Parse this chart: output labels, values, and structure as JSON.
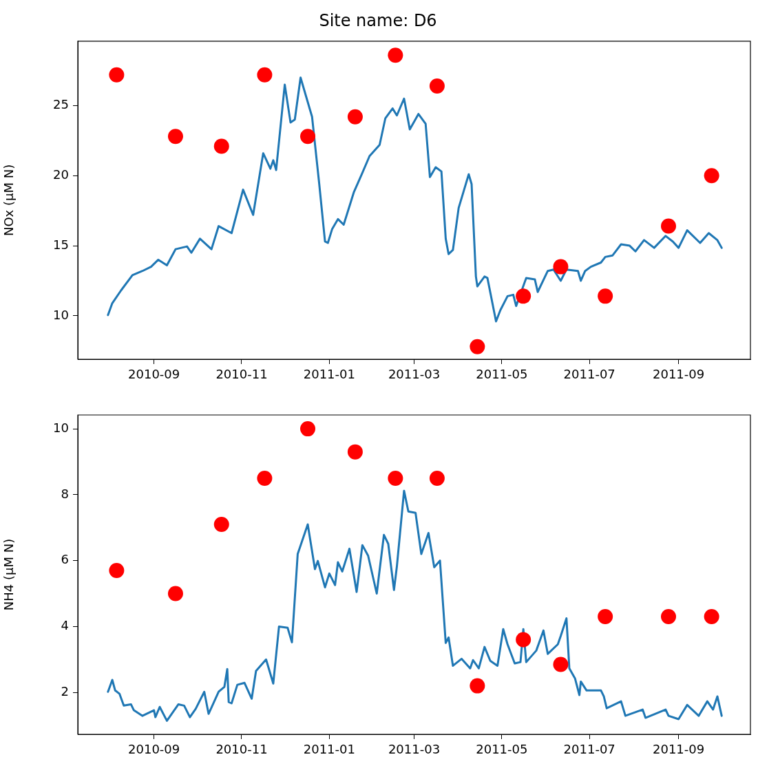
{
  "chart_data": [
    {
      "type": "line",
      "title": "Site name: D6",
      "ylabel": "NOx (μM N)",
      "xlim": [
        "2010-07-10",
        "2011-10-21"
      ],
      "ylim": [
        6.9,
        29.6
      ],
      "xticks": [
        "2010-09",
        "2010-11",
        "2011-01",
        "2011-03",
        "2011-05",
        "2011-07",
        "2011-09"
      ],
      "yticks": [
        10,
        15,
        20,
        25
      ],
      "series": [
        {
          "type": "line",
          "color": "#1f77b4",
          "x": [
            "2010-07-31",
            "2010-08-03",
            "2010-08-09",
            "2010-08-17",
            "2010-08-24",
            "2010-08-30",
            "2010-09-04",
            "2010-09-10",
            "2010-09-16",
            "2010-09-24",
            "2010-09-27",
            "2010-10-03",
            "2010-10-11",
            "2010-10-16",
            "2010-10-25",
            "2010-11-02",
            "2010-11-09",
            "2010-11-16",
            "2010-11-21",
            "2010-11-23",
            "2010-11-25",
            "2010-12-01",
            "2010-12-05",
            "2010-12-08",
            "2010-12-12",
            "2010-12-20",
            "2010-12-25",
            "2010-12-29",
            "2010-12-31",
            "2011-01-03",
            "2011-01-07",
            "2011-01-11",
            "2011-01-18",
            "2011-01-24",
            "2011-01-29",
            "2011-02-05",
            "2011-02-09",
            "2011-02-14",
            "2011-02-17",
            "2011-02-22",
            "2011-02-26",
            "2011-03-04",
            "2011-03-09",
            "2011-03-12",
            "2011-03-16",
            "2011-03-20",
            "2011-03-23",
            "2011-03-25",
            "2011-03-28",
            "2011-04-01",
            "2011-04-08",
            "2011-04-10",
            "2011-04-13",
            "2011-04-14",
            "2011-04-19",
            "2011-04-21",
            "2011-04-27",
            "2011-04-30",
            "2011-05-05",
            "2011-05-09",
            "2011-05-11",
            "2011-05-18",
            "2011-05-24",
            "2011-05-26",
            "2011-06-02",
            "2011-06-06",
            "2011-06-11",
            "2011-06-15",
            "2011-06-23",
            "2011-06-25",
            "2011-06-28",
            "2011-07-02",
            "2011-07-09",
            "2011-07-12",
            "2011-07-17",
            "2011-07-23",
            "2011-07-29",
            "2011-08-02",
            "2011-08-08",
            "2011-08-15",
            "2011-08-23",
            "2011-08-28",
            "2011-09-01",
            "2011-09-07",
            "2011-09-16",
            "2011-09-22",
            "2011-09-28",
            "2011-10-01"
          ],
          "values": [
            10.05,
            10.9,
            11.8,
            12.9,
            13.2,
            13.5,
            14.0,
            13.6,
            14.75,
            14.95,
            14.5,
            15.5,
            14.75,
            16.4,
            15.9,
            19.0,
            17.2,
            21.6,
            20.5,
            21.1,
            20.4,
            26.5,
            23.8,
            24.0,
            27.0,
            24.2,
            19.4,
            15.3,
            15.2,
            16.2,
            16.9,
            16.5,
            18.8,
            20.2,
            21.4,
            22.2,
            24.1,
            24.8,
            24.3,
            25.5,
            23.3,
            24.4,
            23.7,
            19.9,
            20.6,
            20.3,
            15.5,
            14.4,
            14.7,
            17.7,
            20.1,
            19.4,
            12.8,
            12.1,
            12.8,
            12.7,
            9.6,
            10.4,
            11.4,
            11.5,
            10.7,
            12.7,
            12.6,
            11.7,
            13.2,
            13.3,
            12.5,
            13.3,
            13.2,
            12.5,
            13.2,
            13.5,
            13.8,
            14.2,
            14.3,
            15.1,
            15.0,
            14.6,
            15.4,
            14.85,
            15.7,
            15.3,
            14.85,
            16.1,
            15.2,
            15.9,
            15.4,
            14.85
          ]
        },
        {
          "type": "scatter",
          "color": "#ff0000",
          "marker": "circle",
          "x": [
            "2010-08-06",
            "2010-09-16",
            "2010-10-18",
            "2010-11-17",
            "2010-12-17",
            "2011-01-19",
            "2011-02-16",
            "2011-03-17",
            "2011-04-14",
            "2011-05-16",
            "2011-06-11",
            "2011-07-12",
            "2011-08-25",
            "2011-09-24"
          ],
          "values": [
            27.2,
            22.8,
            22.1,
            27.2,
            22.8,
            24.2,
            28.6,
            26.4,
            7.8,
            11.4,
            13.5,
            11.4,
            16.4,
            20.0
          ]
        }
      ]
    },
    {
      "type": "line",
      "ylabel": "NH4 (μM N)",
      "xlim": [
        "2010-07-10",
        "2011-10-21"
      ],
      "ylim": [
        0.73,
        10.42
      ],
      "xticks": [
        "2010-09",
        "2010-11",
        "2011-01",
        "2011-03",
        "2011-05",
        "2011-07",
        "2011-09"
      ],
      "yticks": [
        2,
        4,
        6,
        8,
        10
      ],
      "series": [
        {
          "type": "line",
          "color": "#1f77b4",
          "x": [
            "2010-07-31",
            "2010-08-03",
            "2010-08-05",
            "2010-08-08",
            "2010-08-11",
            "2010-08-16",
            "2010-08-18",
            "2010-08-24",
            "2010-09-01",
            "2010-09-02",
            "2010-09-05",
            "2010-09-10",
            "2010-09-18",
            "2010-09-22",
            "2010-09-26",
            "2010-09-30",
            "2010-10-06",
            "2010-10-09",
            "2010-10-16",
            "2010-10-20",
            "2010-10-22",
            "2010-10-23",
            "2010-10-25",
            "2010-10-29",
            "2010-11-03",
            "2010-11-08",
            "2010-11-11",
            "2010-11-18",
            "2010-11-23",
            "2010-11-27",
            "2010-12-03",
            "2010-12-06",
            "2010-12-10",
            "2010-12-17",
            "2010-12-22",
            "2010-12-24",
            "2010-12-29",
            "2011-01-01",
            "2011-01-05",
            "2011-01-07",
            "2011-01-10",
            "2011-01-15",
            "2011-01-20",
            "2011-01-24",
            "2011-01-28",
            "2011-02-03",
            "2011-02-08",
            "2011-02-11",
            "2011-02-15",
            "2011-02-17",
            "2011-02-22",
            "2011-02-25",
            "2011-03-02",
            "2011-03-06",
            "2011-03-11",
            "2011-03-15",
            "2011-03-19",
            "2011-03-23",
            "2011-03-25",
            "2011-03-28",
            "2011-04-03",
            "2011-04-09",
            "2011-04-11",
            "2011-04-15",
            "2011-04-19",
            "2011-04-23",
            "2011-04-28",
            "2011-05-02",
            "2011-05-05",
            "2011-05-10",
            "2011-05-14",
            "2011-05-16",
            "2011-05-18",
            "2011-05-25",
            "2011-05-30",
            "2011-06-02",
            "2011-06-09",
            "2011-06-11",
            "2011-06-15",
            "2011-06-17",
            "2011-06-21",
            "2011-06-24",
            "2011-06-25",
            "2011-06-29",
            "2011-07-09",
            "2011-07-11",
            "2011-07-13",
            "2011-07-23",
            "2011-07-26",
            "2011-08-07",
            "2011-08-09",
            "2011-08-23",
            "2011-08-25",
            "2011-09-01",
            "2011-09-07",
            "2011-09-15",
            "2011-09-21",
            "2011-09-25",
            "2011-09-28",
            "2011-10-01"
          ],
          "values": [
            2.02,
            2.38,
            2.06,
            1.96,
            1.6,
            1.64,
            1.46,
            1.29,
            1.46,
            1.25,
            1.56,
            1.14,
            1.64,
            1.6,
            1.25,
            1.5,
            2.02,
            1.35,
            2.02,
            2.17,
            2.71,
            1.71,
            1.67,
            2.23,
            2.29,
            1.81,
            2.65,
            3.0,
            2.27,
            4.0,
            3.96,
            3.52,
            6.2,
            7.1,
            5.74,
            5.99,
            5.19,
            5.61,
            5.26,
            5.95,
            5.67,
            6.36,
            5.05,
            6.47,
            6.15,
            5.0,
            6.78,
            6.51,
            5.11,
            5.82,
            8.12,
            7.49,
            7.45,
            6.2,
            6.84,
            5.8,
            6.0,
            3.5,
            3.67,
            2.81,
            3.02,
            2.73,
            2.98,
            2.73,
            3.38,
            2.96,
            2.81,
            3.92,
            3.46,
            2.88,
            2.92,
            3.92,
            2.92,
            3.27,
            3.88,
            3.17,
            3.46,
            3.71,
            4.25,
            2.73,
            2.42,
            1.92,
            2.33,
            2.06,
            2.06,
            1.88,
            1.52,
            1.73,
            1.29,
            1.48,
            1.23,
            1.48,
            1.29,
            1.19,
            1.62,
            1.29,
            1.73,
            1.48,
            1.88,
            1.29
          ]
        },
        {
          "type": "scatter",
          "color": "#ff0000",
          "marker": "circle",
          "x": [
            "2010-08-06",
            "2010-09-16",
            "2010-10-18",
            "2010-11-17",
            "2010-12-17",
            "2011-01-19",
            "2011-02-16",
            "2011-03-17",
            "2011-04-14",
            "2011-05-16",
            "2011-06-11",
            "2011-07-12",
            "2011-08-25",
            "2011-09-24"
          ],
          "values": [
            5.7,
            5.0,
            7.1,
            8.5,
            10.0,
            9.3,
            8.5,
            8.5,
            2.2,
            3.6,
            2.85,
            4.3,
            4.3,
            4.3
          ]
        }
      ]
    }
  ]
}
